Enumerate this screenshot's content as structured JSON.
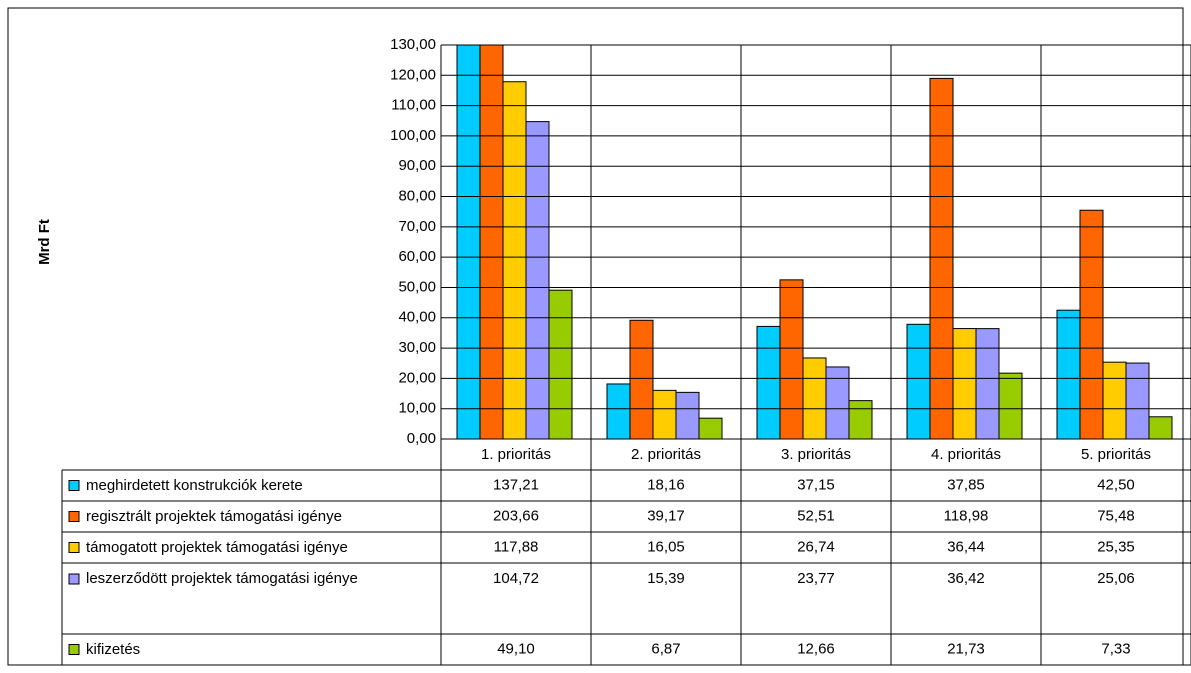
{
  "chart_data": {
    "type": "bar",
    "y_label": "Mrd Ft",
    "categories": [
      "1. prioritás",
      "2. prioritás",
      "3. prioritás",
      "4. prioritás",
      "5. prioritás"
    ],
    "series": [
      {
        "name": "meghirdetett konstrukciók kerete",
        "color": "#00ccff",
        "values": [
          137.21,
          18.16,
          37.15,
          37.85,
          42.5
        ],
        "value_labels": [
          "137,21",
          "18,16",
          "37,15",
          "37,85",
          "42,50"
        ]
      },
      {
        "name": "regisztrált projektek támogatási igénye",
        "color": "#ff6600",
        "values": [
          203.66,
          39.17,
          52.51,
          118.98,
          75.48
        ],
        "value_labels": [
          "203,66",
          "39,17",
          "52,51",
          "118,98",
          "75,48"
        ]
      },
      {
        "name": "támogatott projektek támogatási igénye",
        "color": "#ffcc00",
        "values": [
          117.88,
          16.05,
          26.74,
          36.44,
          25.35
        ],
        "value_labels": [
          "117,88",
          "16,05",
          "26,74",
          "36,44",
          "25,35"
        ]
      },
      {
        "name": "leszerződött projektek támogatási igénye",
        "color": "#9999ff",
        "values": [
          104.72,
          15.39,
          23.77,
          36.42,
          25.06
        ],
        "value_labels": [
          "104,72",
          "15,39",
          "23,77",
          "36,42",
          "25,06"
        ]
      },
      {
        "name": "kifizetés",
        "color": "#99cc00",
        "values": [
          49.1,
          6.87,
          12.66,
          21.73,
          7.33
        ],
        "value_labels": [
          "49,10",
          "6,87",
          "12,66",
          "21,73",
          "7,33"
        ]
      }
    ],
    "ylim": [
      0,
      130
    ],
    "yticks": [
      {
        "value": 0,
        "label": "0,00"
      },
      {
        "value": 10,
        "label": "10,00"
      },
      {
        "value": 20,
        "label": "20,00"
      },
      {
        "value": 30,
        "label": "30,00"
      },
      {
        "value": 40,
        "label": "40,00"
      },
      {
        "value": 50,
        "label": "50,00"
      },
      {
        "value": 60,
        "label": "60,00"
      },
      {
        "value": 70,
        "label": "70,00"
      },
      {
        "value": 80,
        "label": "80,00"
      },
      {
        "value": 90,
        "label": "90,00"
      },
      {
        "value": 100,
        "label": "100,00"
      },
      {
        "value": 110,
        "label": "110,00"
      },
      {
        "value": 120,
        "label": "120,00"
      },
      {
        "value": 130,
        "label": "130,00"
      }
    ],
    "grid": true
  }
}
